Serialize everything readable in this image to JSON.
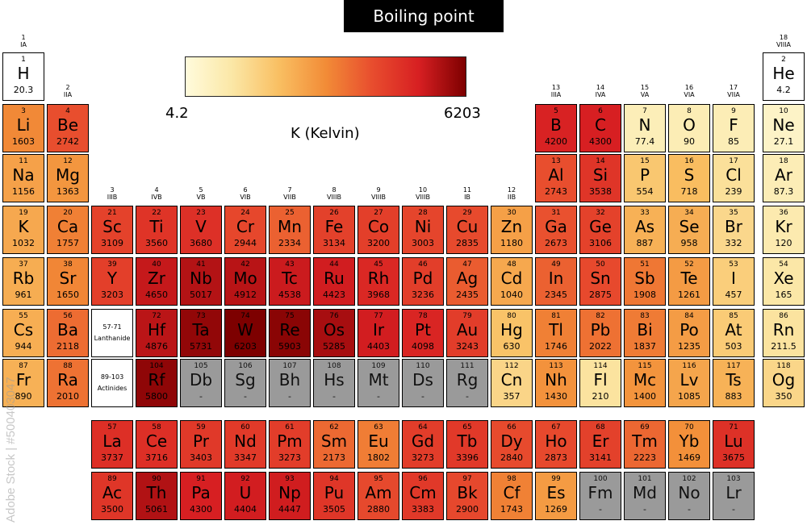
{
  "title": "Boiling point",
  "scale": {
    "min": "4.2",
    "max": "6203",
    "unit": "K (Kelvin)",
    "colors": [
      "#fffbdc",
      "#fbe7a6",
      "#f9bf62",
      "#f28c37",
      "#e84d2e",
      "#d71f22",
      "#7d0000"
    ]
  },
  "groups": [
    {
      "n": "1",
      "r": "IA"
    },
    {
      "n": "2",
      "r": "IIA"
    },
    {
      "n": "3",
      "r": "IIIB"
    },
    {
      "n": "4",
      "r": "IVB"
    },
    {
      "n": "5",
      "r": "VB"
    },
    {
      "n": "6",
      "r": "VIB"
    },
    {
      "n": "7",
      "r": "VIIB"
    },
    {
      "n": "8",
      "r": "VIIIB"
    },
    {
      "n": "9",
      "r": "VIIIB"
    },
    {
      "n": "10",
      "r": "VIIIB"
    },
    {
      "n": "11",
      "r": "IB"
    },
    {
      "n": "12",
      "r": "IIB"
    },
    {
      "n": "13",
      "r": "IIIA"
    },
    {
      "n": "14",
      "r": "IVA"
    },
    {
      "n": "15",
      "r": "VA"
    },
    {
      "n": "16",
      "r": "VIA"
    },
    {
      "n": "17",
      "r": "VIIA"
    },
    {
      "n": "18",
      "r": "VIIIA"
    }
  ],
  "lanthanide_ref": {
    "range": "57-71",
    "label": "Lanthanide"
  },
  "actinide_ref": {
    "range": "89-103",
    "label": "Actinides"
  },
  "watermark": "Adobe Stock | #500403047",
  "unknown_value": "-",
  "elements": [
    {
      "n": 1,
      "s": "H",
      "bp": "20.3"
    },
    {
      "n": 2,
      "s": "He",
      "bp": "4.2"
    },
    {
      "n": 3,
      "s": "Li",
      "bp": "1603"
    },
    {
      "n": 4,
      "s": "Be",
      "bp": "2742"
    },
    {
      "n": 5,
      "s": "B",
      "bp": "4200"
    },
    {
      "n": 6,
      "s": "C",
      "bp": "4300"
    },
    {
      "n": 7,
      "s": "N",
      "bp": "77.4"
    },
    {
      "n": 8,
      "s": "O",
      "bp": "90"
    },
    {
      "n": 9,
      "s": "F",
      "bp": "85"
    },
    {
      "n": 10,
      "s": "Ne",
      "bp": "27.1"
    },
    {
      "n": 11,
      "s": "Na",
      "bp": "1156"
    },
    {
      "n": 12,
      "s": "Mg",
      "bp": "1363"
    },
    {
      "n": 13,
      "s": "Al",
      "bp": "2743"
    },
    {
      "n": 14,
      "s": "Si",
      "bp": "3538"
    },
    {
      "n": 15,
      "s": "P",
      "bp": "554"
    },
    {
      "n": 16,
      "s": "S",
      "bp": "718"
    },
    {
      "n": 17,
      "s": "Cl",
      "bp": "239"
    },
    {
      "n": 18,
      "s": "Ar",
      "bp": "87.3"
    },
    {
      "n": 19,
      "s": "K",
      "bp": "1032"
    },
    {
      "n": 20,
      "s": "Ca",
      "bp": "1757"
    },
    {
      "n": 21,
      "s": "Sc",
      "bp": "3109"
    },
    {
      "n": 22,
      "s": "Ti",
      "bp": "3560"
    },
    {
      "n": 23,
      "s": "V",
      "bp": "3680"
    },
    {
      "n": 24,
      "s": "Cr",
      "bp": "2944"
    },
    {
      "n": 25,
      "s": "Mn",
      "bp": "2334"
    },
    {
      "n": 26,
      "s": "Fe",
      "bp": "3134"
    },
    {
      "n": 27,
      "s": "Co",
      "bp": "3200"
    },
    {
      "n": 28,
      "s": "Ni",
      "bp": "3003"
    },
    {
      "n": 29,
      "s": "Cu",
      "bp": "2835"
    },
    {
      "n": 30,
      "s": "Zn",
      "bp": "1180"
    },
    {
      "n": 31,
      "s": "Ga",
      "bp": "2673"
    },
    {
      "n": 32,
      "s": "Ge",
      "bp": "3106"
    },
    {
      "n": 33,
      "s": "As",
      "bp": "887"
    },
    {
      "n": 34,
      "s": "Se",
      "bp": "958"
    },
    {
      "n": 35,
      "s": "Br",
      "bp": "332"
    },
    {
      "n": 36,
      "s": "Kr",
      "bp": "120"
    },
    {
      "n": 37,
      "s": "Rb",
      "bp": "961"
    },
    {
      "n": 38,
      "s": "Sr",
      "bp": "1650"
    },
    {
      "n": 39,
      "s": "Y",
      "bp": "3203"
    },
    {
      "n": 40,
      "s": "Zr",
      "bp": "4650"
    },
    {
      "n": 41,
      "s": "Nb",
      "bp": "5017"
    },
    {
      "n": 42,
      "s": "Mo",
      "bp": "4912"
    },
    {
      "n": 43,
      "s": "Tc",
      "bp": "4538"
    },
    {
      "n": 44,
      "s": "Ru",
      "bp": "4423"
    },
    {
      "n": 45,
      "s": "Rh",
      "bp": "3968"
    },
    {
      "n": 46,
      "s": "Pd",
      "bp": "3236"
    },
    {
      "n": 47,
      "s": "Ag",
      "bp": "2435"
    },
    {
      "n": 48,
      "s": "Cd",
      "bp": "1040"
    },
    {
      "n": 49,
      "s": "In",
      "bp": "2345"
    },
    {
      "n": 50,
      "s": "Sn",
      "bp": "2875"
    },
    {
      "n": 51,
      "s": "Sb",
      "bp": "1908"
    },
    {
      "n": 52,
      "s": "Te",
      "bp": "1261"
    },
    {
      "n": 53,
      "s": "I",
      "bp": "457"
    },
    {
      "n": 54,
      "s": "Xe",
      "bp": "165"
    },
    {
      "n": 55,
      "s": "Cs",
      "bp": "944"
    },
    {
      "n": 56,
      "s": "Ba",
      "bp": "2118"
    },
    {
      "n": 72,
      "s": "Hf",
      "bp": "4876"
    },
    {
      "n": 73,
      "s": "Ta",
      "bp": "5731"
    },
    {
      "n": 74,
      "s": "W",
      "bp": "6203"
    },
    {
      "n": 75,
      "s": "Re",
      "bp": "5903"
    },
    {
      "n": 76,
      "s": "Os",
      "bp": "5285"
    },
    {
      "n": 77,
      "s": "Ir",
      "bp": "4403"
    },
    {
      "n": 78,
      "s": "Pt",
      "bp": "4098"
    },
    {
      "n": 79,
      "s": "Au",
      "bp": "3243"
    },
    {
      "n": 80,
      "s": "Hg",
      "bp": "630"
    },
    {
      "n": 81,
      "s": "Tl",
      "bp": "1746"
    },
    {
      "n": 82,
      "s": "Pb",
      "bp": "2022"
    },
    {
      "n": 83,
      "s": "Bi",
      "bp": "1837"
    },
    {
      "n": 84,
      "s": "Po",
      "bp": "1235"
    },
    {
      "n": 85,
      "s": "At",
      "bp": "503"
    },
    {
      "n": 86,
      "s": "Rn",
      "bp": "211.5"
    },
    {
      "n": 87,
      "s": "Fr",
      "bp": "890"
    },
    {
      "n": 88,
      "s": "Ra",
      "bp": "2010"
    },
    {
      "n": 104,
      "s": "Rf",
      "bp": "5800"
    },
    {
      "n": 105,
      "s": "Db",
      "bp": "-"
    },
    {
      "n": 106,
      "s": "Sg",
      "bp": "-"
    },
    {
      "n": 107,
      "s": "Bh",
      "bp": "-"
    },
    {
      "n": 108,
      "s": "Hs",
      "bp": "-"
    },
    {
      "n": 109,
      "s": "Mt",
      "bp": "-"
    },
    {
      "n": 110,
      "s": "Ds",
      "bp": "-"
    },
    {
      "n": 111,
      "s": "Rg",
      "bp": "-"
    },
    {
      "n": 112,
      "s": "Cn",
      "bp": "357"
    },
    {
      "n": 113,
      "s": "Nh",
      "bp": "1430"
    },
    {
      "n": 114,
      "s": "Fl",
      "bp": "210"
    },
    {
      "n": 115,
      "s": "Mc",
      "bp": "1400"
    },
    {
      "n": 116,
      "s": "Lv",
      "bp": "1085"
    },
    {
      "n": 117,
      "s": "Ts",
      "bp": "883"
    },
    {
      "n": 118,
      "s": "Og",
      "bp": "350"
    },
    {
      "n": 57,
      "s": "La",
      "bp": "3737"
    },
    {
      "n": 58,
      "s": "Ce",
      "bp": "3716"
    },
    {
      "n": 59,
      "s": "Pr",
      "bp": "3403"
    },
    {
      "n": 60,
      "s": "Nd",
      "bp": "3347"
    },
    {
      "n": 61,
      "s": "Pm",
      "bp": "3273"
    },
    {
      "n": 62,
      "s": "Sm",
      "bp": "2173"
    },
    {
      "n": 63,
      "s": "Eu",
      "bp": "1802"
    },
    {
      "n": 64,
      "s": "Gd",
      "bp": "3273"
    },
    {
      "n": 65,
      "s": "Tb",
      "bp": "3396"
    },
    {
      "n": 66,
      "s": "Dy",
      "bp": "2840"
    },
    {
      "n": 67,
      "s": "Ho",
      "bp": "2873"
    },
    {
      "n": 68,
      "s": "Er",
      "bp": "3141"
    },
    {
      "n": 69,
      "s": "Tm",
      "bp": "2223"
    },
    {
      "n": 70,
      "s": "Yb",
      "bp": "1469"
    },
    {
      "n": 71,
      "s": "Lu",
      "bp": "3675"
    },
    {
      "n": 89,
      "s": "Ac",
      "bp": "3500"
    },
    {
      "n": 90,
      "s": "Th",
      "bp": "5061"
    },
    {
      "n": 91,
      "s": "Pa",
      "bp": "4300"
    },
    {
      "n": 92,
      "s": "U",
      "bp": "4404"
    },
    {
      "n": 93,
      "s": "Np",
      "bp": "4447"
    },
    {
      "n": 94,
      "s": "Pu",
      "bp": "3505"
    },
    {
      "n": 95,
      "s": "Am",
      "bp": "2880"
    },
    {
      "n": 96,
      "s": "Cm",
      "bp": "3383"
    },
    {
      "n": 97,
      "s": "Bk",
      "bp": "2900"
    },
    {
      "n": 98,
      "s": "Cf",
      "bp": "1743"
    },
    {
      "n": 99,
      "s": "Es",
      "bp": "1269"
    },
    {
      "n": 100,
      "s": "Fm",
      "bp": "-"
    },
    {
      "n": 101,
      "s": "Md",
      "bp": "-"
    },
    {
      "n": 102,
      "s": "No",
      "bp": "-"
    },
    {
      "n": 103,
      "s": "Lr",
      "bp": "-"
    }
  ]
}
